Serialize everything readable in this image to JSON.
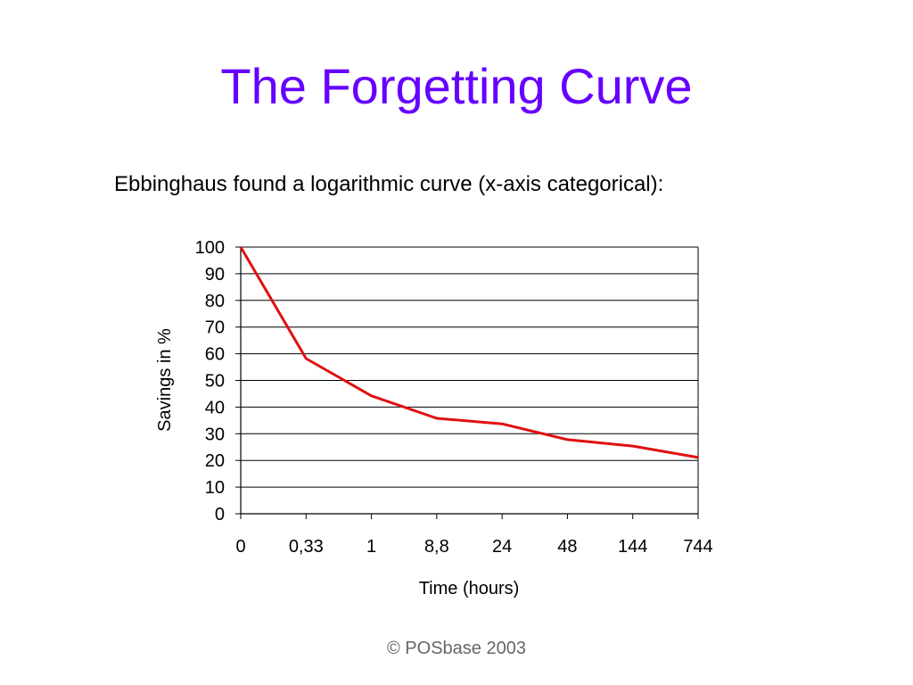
{
  "slide": {
    "title": "The Forgetting Curve",
    "subtitle": "Ebbinghaus found a logarithmic curve (x-axis categorical):",
    "footer": "© POSbase 2003"
  },
  "colors": {
    "title": "#6600ff",
    "series_line": "#e01010",
    "grid": "#000000",
    "footer": "#666666"
  },
  "chart_data": {
    "type": "line",
    "title": "",
    "xlabel": "Time (hours)",
    "ylabel": "Savings in %",
    "categories": [
      "0",
      "0,33",
      "1",
      "8,8",
      "24",
      "48",
      "144",
      "744"
    ],
    "series": [
      {
        "values": [
          100,
          58.2,
          44.2,
          35.8,
          33.7,
          27.8,
          25.4,
          21.1
        ]
      }
    ],
    "ylim": [
      0,
      100
    ],
    "yticks": [
      0,
      10,
      20,
      30,
      40,
      50,
      60,
      70,
      80,
      90,
      100
    ],
    "grid": true,
    "legend": "none"
  }
}
